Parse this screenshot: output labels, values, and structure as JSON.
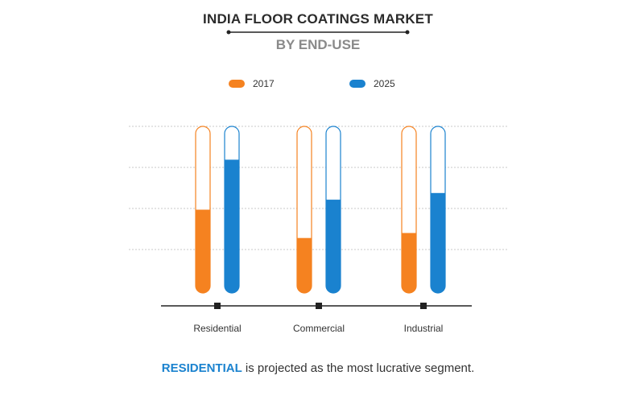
{
  "title": "INDIA FLOOR COATINGS MARKET",
  "subtitle": "BY END-USE",
  "caption": {
    "highlight": "RESIDENTIAL",
    "rest": " is projected as the most lucrative segment."
  },
  "colors": {
    "2017": "#f58220",
    "2025": "#1a82cf"
  },
  "chart_data": {
    "type": "bar",
    "categories": [
      "Residential",
      "Commercial",
      "Industrial"
    ],
    "series": [
      {
        "name": "2017",
        "values": [
          50,
          33,
          36
        ]
      },
      {
        "name": "2025",
        "values": [
          80,
          56,
          60
        ]
      }
    ],
    "ylim": [
      0,
      100
    ],
    "grid": true,
    "legend": "top-center"
  }
}
